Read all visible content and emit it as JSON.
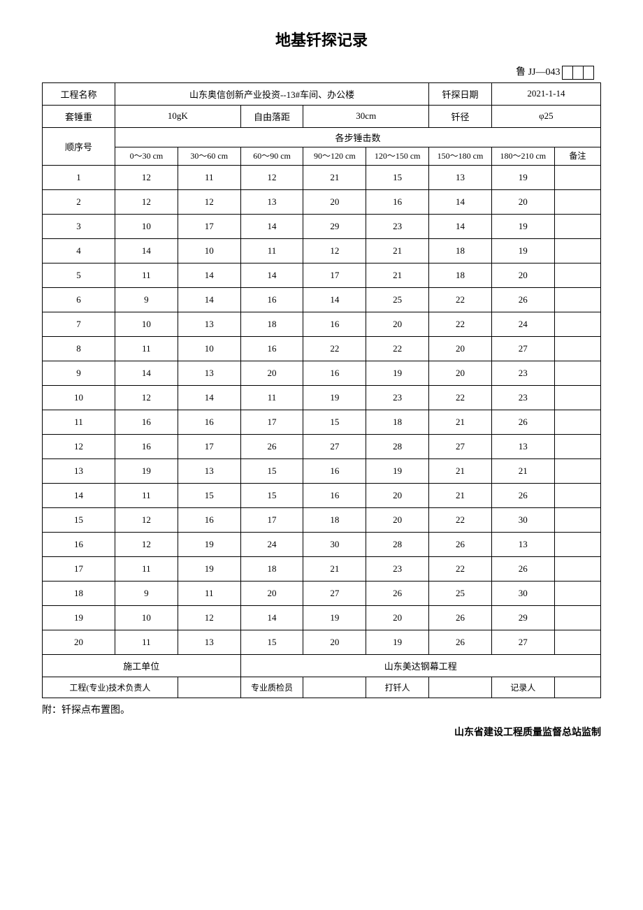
{
  "title": "地基钎探记录",
  "form_code": "鲁 JJ—043",
  "header": {
    "project_name_label": "工程名称",
    "project_name": "山东奥信创新产业投资--13#车间、办公楼",
    "probe_date_label": "钎探日期",
    "probe_date": "2021-1-14",
    "hammer_weight_label": "套锤重",
    "hammer_weight": "10gK",
    "drop_height_label": "自由落距",
    "drop_height": "30cm",
    "probe_diameter_label": "钎径",
    "probe_diameter": "φ25"
  },
  "table": {
    "sequence_label": "顺序号",
    "step_count_label": "各步锤击数",
    "remark_label": "备注",
    "depth_columns": [
      "0～30 cm",
      "30～60 cm",
      "60～90 cm",
      "90～120 cm",
      "120～150 cm",
      "150～180 cm",
      "180～210 cm"
    ],
    "rows": [
      {
        "seq": "1",
        "v": [
          "12",
          "11",
          "12",
          "21",
          "15",
          "13",
          "19"
        ],
        "remark": ""
      },
      {
        "seq": "2",
        "v": [
          "12",
          "12",
          "13",
          "20",
          "16",
          "14",
          "20"
        ],
        "remark": ""
      },
      {
        "seq": "3",
        "v": [
          "10",
          "17",
          "14",
          "29",
          "23",
          "14",
          "19"
        ],
        "remark": ""
      },
      {
        "seq": "4",
        "v": [
          "14",
          "10",
          "11",
          "12",
          "21",
          "18",
          "19"
        ],
        "remark": ""
      },
      {
        "seq": "5",
        "v": [
          "11",
          "14",
          "14",
          "17",
          "21",
          "18",
          "20"
        ],
        "remark": ""
      },
      {
        "seq": "6",
        "v": [
          "9",
          "14",
          "16",
          "14",
          "25",
          "22",
          "26"
        ],
        "remark": ""
      },
      {
        "seq": "7",
        "v": [
          "10",
          "13",
          "18",
          "16",
          "20",
          "22",
          "24"
        ],
        "remark": ""
      },
      {
        "seq": "8",
        "v": [
          "11",
          "10",
          "16",
          "22",
          "22",
          "20",
          "27"
        ],
        "remark": ""
      },
      {
        "seq": "9",
        "v": [
          "14",
          "13",
          "20",
          "16",
          "19",
          "20",
          "23"
        ],
        "remark": ""
      },
      {
        "seq": "10",
        "v": [
          "12",
          "14",
          "11",
          "19",
          "23",
          "22",
          "23"
        ],
        "remark": ""
      },
      {
        "seq": "11",
        "v": [
          "16",
          "16",
          "17",
          "15",
          "18",
          "21",
          "26"
        ],
        "remark": ""
      },
      {
        "seq": "12",
        "v": [
          "16",
          "17",
          "26",
          "27",
          "28",
          "27",
          "13"
        ],
        "remark": ""
      },
      {
        "seq": "13",
        "v": [
          "19",
          "13",
          "15",
          "16",
          "19",
          "21",
          "21"
        ],
        "remark": ""
      },
      {
        "seq": "14",
        "v": [
          "11",
          "15",
          "15",
          "16",
          "20",
          "21",
          "26"
        ],
        "remark": ""
      },
      {
        "seq": "15",
        "v": [
          "12",
          "16",
          "17",
          "18",
          "20",
          "22",
          "30"
        ],
        "remark": ""
      },
      {
        "seq": "16",
        "v": [
          "12",
          "19",
          "24",
          "30",
          "28",
          "26",
          "13"
        ],
        "remark": ""
      },
      {
        "seq": "17",
        "v": [
          "11",
          "19",
          "18",
          "21",
          "23",
          "22",
          "26"
        ],
        "remark": ""
      },
      {
        "seq": "18",
        "v": [
          "9",
          "11",
          "20",
          "27",
          "26",
          "25",
          "30"
        ],
        "remark": ""
      },
      {
        "seq": "19",
        "v": [
          "10",
          "12",
          "14",
          "19",
          "20",
          "26",
          "29"
        ],
        "remark": ""
      },
      {
        "seq": "20",
        "v": [
          "11",
          "13",
          "15",
          "20",
          "19",
          "26",
          "27"
        ],
        "remark": ""
      }
    ]
  },
  "footer": {
    "contractor_label": "施工单位",
    "contractor": "山东美达钢幕工程",
    "tech_lead_label": "工程(专业)技术负责人",
    "tech_lead": "",
    "quality_inspector_label": "专业质检员",
    "quality_inspector": "",
    "operator_label": "打钎人",
    "operator": "",
    "recorder_label": "记录人",
    "recorder": ""
  },
  "notes": {
    "attachment": "附：钎探点布置图。",
    "stamp": "山东省建设工程质量监督总站监制"
  }
}
